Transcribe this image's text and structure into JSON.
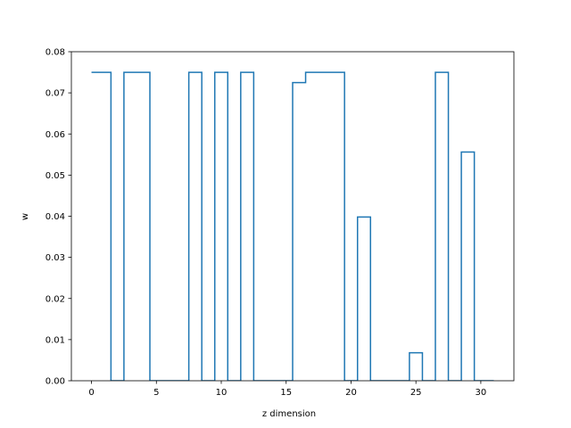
{
  "chart_data": {
    "type": "line",
    "drawstyle": "steps-mid",
    "title": "",
    "xlabel": "z dimension",
    "ylabel": "w",
    "xlim": [
      -1.55,
      32.55
    ],
    "ylim": [
      0.0,
      0.08
    ],
    "xticks": [
      0,
      5,
      10,
      15,
      20,
      25,
      30
    ],
    "xtick_labels": [
      "0",
      "5",
      "10",
      "15",
      "20",
      "25",
      "30"
    ],
    "yticks": [
      0.0,
      0.01,
      0.02,
      0.03,
      0.04,
      0.05,
      0.06,
      0.07,
      0.08
    ],
    "ytick_labels": [
      "0.00",
      "0.01",
      "0.02",
      "0.03",
      "0.04",
      "0.05",
      "0.06",
      "0.07",
      "0.08"
    ],
    "grid": false,
    "line_color": "#1f77b4",
    "series": [
      {
        "x": [
          0,
          1,
          2,
          3,
          4,
          5,
          6,
          7,
          8,
          9,
          10,
          11,
          12,
          13,
          14,
          15,
          16,
          17,
          18,
          19,
          20,
          21,
          22,
          23,
          24,
          25,
          26,
          27,
          28,
          29,
          30,
          31
        ],
        "values": [
          0.075,
          0.075,
          0.0,
          0.075,
          0.075,
          0.0,
          0.0,
          0.0,
          0.075,
          0.0,
          0.075,
          0.0,
          0.075,
          0.0,
          0.0,
          0.0,
          0.0725,
          0.075,
          0.075,
          0.075,
          0.0,
          0.0398,
          0.0,
          0.0,
          0.0,
          0.0068,
          0.0,
          0.075,
          0.0,
          0.0556,
          0.0,
          0.0
        ]
      }
    ]
  }
}
